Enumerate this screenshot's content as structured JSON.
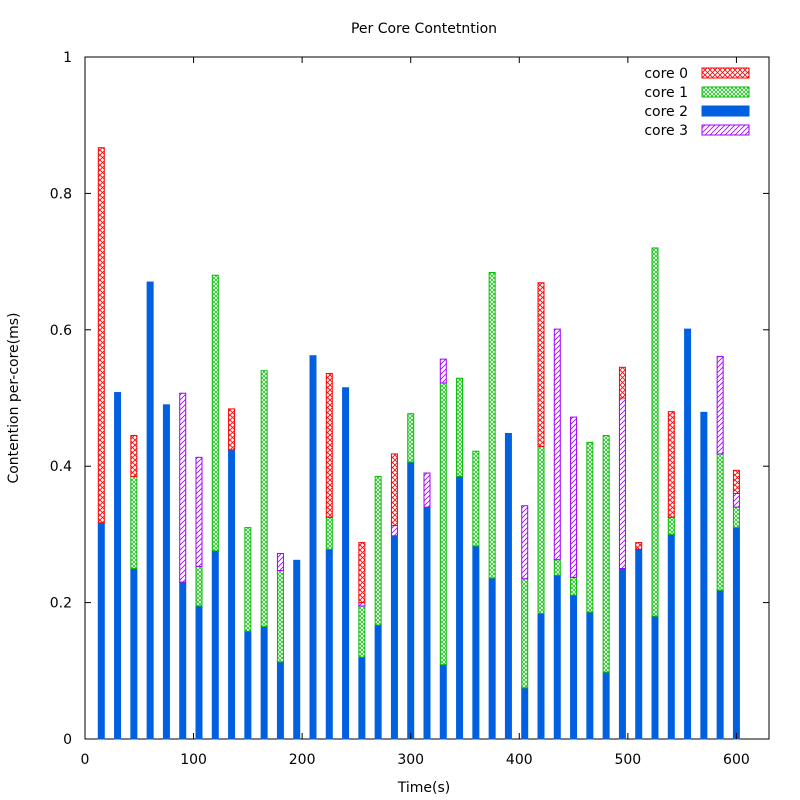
{
  "chart_data": {
    "type": "bar",
    "stacked": true,
    "title": "Per Core Contetntion",
    "xlabel": "Time(s)",
    "ylabel": "Contention per-core(ms)",
    "xlim": [
      0,
      630
    ],
    "ylim": [
      0,
      1
    ],
    "x_ticks": [
      0,
      100,
      200,
      300,
      400,
      500,
      600
    ],
    "y_ticks": [
      0,
      0.2,
      0.4,
      0.6,
      0.8,
      1
    ],
    "y_tick_labels": [
      "0",
      "0.2",
      "0.4",
      "0.6",
      "0.8",
      "1"
    ],
    "grid": false,
    "legend_position": "top-right",
    "x": [
      15,
      30,
      45,
      60,
      75,
      90,
      105,
      120,
      135,
      150,
      165,
      180,
      195,
      210,
      225,
      240,
      255,
      270,
      285,
      300,
      315,
      330,
      345,
      360,
      375,
      390,
      405,
      420,
      435,
      450,
      465,
      480,
      495,
      510,
      525,
      540,
      555,
      570,
      585,
      600
    ],
    "series": [
      {
        "name": "core 2",
        "color": "#0060e0",
        "pattern": "solid",
        "values": [
          0.317,
          0.508,
          0.25,
          0.67,
          0.49,
          0.23,
          0.195,
          0.276,
          0.424,
          0.158,
          0.165,
          0.113,
          0.262,
          0.562,
          0.278,
          0.515,
          0.12,
          0.167,
          0.298,
          0.406,
          0.34,
          0.109,
          0.385,
          0.283,
          0.236,
          0.448,
          0.075,
          0.184,
          0.24,
          0.211,
          0.186,
          0.098,
          0.25,
          0.278,
          0.18,
          0.3,
          0.601,
          0.479,
          0.218,
          0.31
        ]
      },
      {
        "name": "core 1",
        "color": "#00c000",
        "pattern": "crosshatch",
        "values": [
          0,
          0,
          0.135,
          0,
          0,
          0,
          0.058,
          0.404,
          0,
          0.152,
          0.375,
          0.134,
          0,
          0,
          0.047,
          0,
          0.075,
          0.218,
          0,
          0.071,
          0,
          0.413,
          0.144,
          0.139,
          0.448,
          0,
          0.16,
          0.245,
          0.023,
          0.026,
          0.249,
          0.347,
          0,
          0,
          0.54,
          0.025,
          0,
          0,
          0.2,
          0.03
        ]
      },
      {
        "name": "core 3",
        "color": "#a000ff",
        "pattern": "diagonal",
        "values": [
          0,
          0,
          0,
          0,
          0,
          0.277,
          0.16,
          0,
          0,
          0,
          0,
          0.025,
          0,
          0,
          0,
          0,
          0.005,
          0,
          0.015,
          0,
          0.05,
          0.035,
          0,
          0,
          0,
          0,
          0.107,
          0,
          0.338,
          0.235,
          0,
          0,
          0.25,
          0,
          0,
          0,
          0,
          0,
          0.143,
          0.02
        ]
      },
      {
        "name": "core 0",
        "color": "#ff0000",
        "pattern": "crosshatch-dense",
        "values": [
          0.55,
          0,
          0.06,
          0,
          0,
          0,
          0,
          0,
          0.06,
          0,
          0,
          0,
          0,
          0,
          0.211,
          0,
          0.088,
          0,
          0.105,
          0,
          0,
          0,
          0,
          0,
          0,
          0,
          0,
          0.24,
          0,
          0,
          0,
          0,
          0.045,
          0.01,
          0,
          0.155,
          0,
          0,
          0,
          0.034
        ]
      }
    ],
    "legend": [
      {
        "label": "core 0",
        "series": "core 0"
      },
      {
        "label": "core 1",
        "series": "core 1"
      },
      {
        "label": "core 2",
        "series": "core 2"
      },
      {
        "label": "core 3",
        "series": "core 3"
      }
    ]
  }
}
